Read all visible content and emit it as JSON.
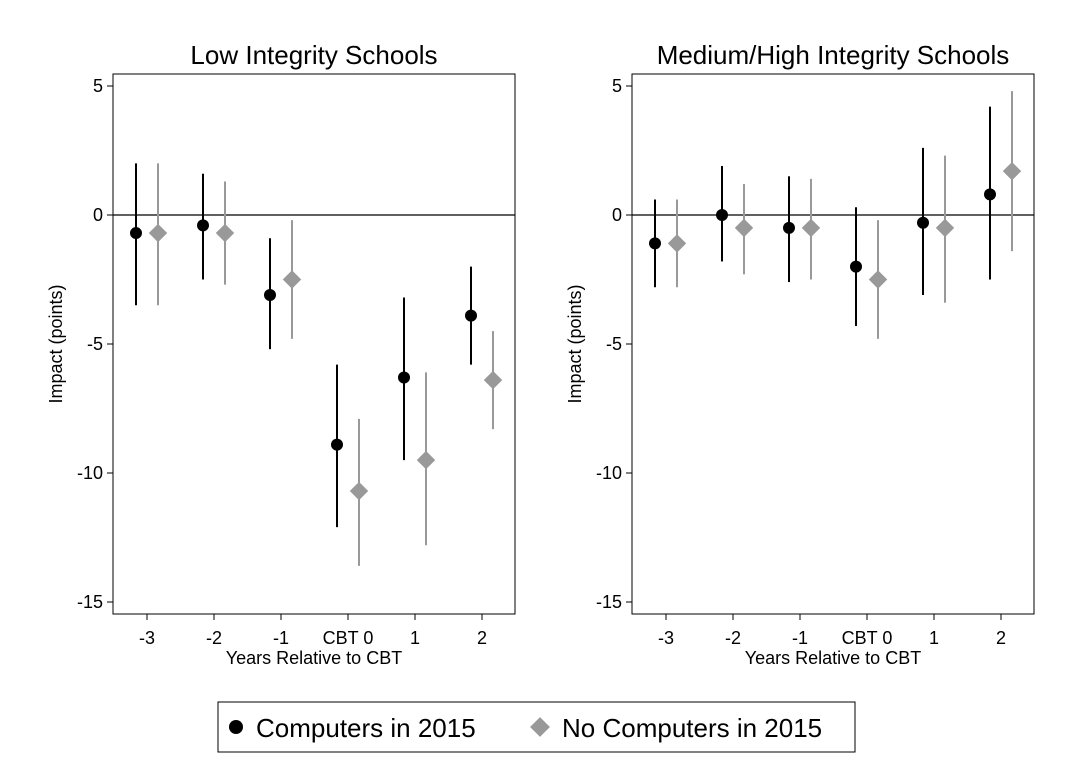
{
  "chart_data": [
    {
      "type": "scatter",
      "title": "Low Integrity Schools",
      "xlabel": "Years Relative to CBT",
      "ylabel": "Impact (points)",
      "categories": [
        "-3",
        "-2",
        "-1",
        "CBT 0",
        "1",
        "2"
      ],
      "yticks": [
        5,
        0,
        -5,
        -10,
        -15
      ],
      "ylim": [
        -15.5,
        5.5
      ],
      "zero_line": true,
      "series": [
        {
          "name": "Computers in 2015",
          "color": "#000000",
          "marker": "circle",
          "values": [
            -0.7,
            -0.4,
            -3.1,
            -8.9,
            -6.3,
            -3.9
          ],
          "ci_low": [
            -3.5,
            -2.5,
            -5.2,
            -12.1,
            -9.5,
            -5.8
          ],
          "ci_high": [
            2.0,
            1.6,
            -0.9,
            -5.8,
            -3.2,
            -2.0
          ]
        },
        {
          "name": "No Computers in 2015",
          "color": "#999999",
          "marker": "diamond",
          "values": [
            -0.7,
            -0.7,
            -2.5,
            -10.7,
            -9.5,
            -6.4
          ],
          "ci_low": [
            -3.5,
            -2.7,
            -4.8,
            -13.6,
            -12.8,
            -8.3
          ],
          "ci_high": [
            2.0,
            1.3,
            -0.2,
            -7.9,
            -6.1,
            -4.5
          ]
        }
      ]
    },
    {
      "type": "scatter",
      "title": "Medium/High Integrity Schools",
      "xlabel": "Years Relative to CBT",
      "ylabel": "Impact (points)",
      "categories": [
        "-3",
        "-2",
        "-1",
        "CBT 0",
        "1",
        "2"
      ],
      "yticks": [
        5,
        0,
        -5,
        -10,
        -15
      ],
      "ylim": [
        -15.5,
        5.5
      ],
      "zero_line": true,
      "series": [
        {
          "name": "Computers in 2015",
          "color": "#000000",
          "marker": "circle",
          "values": [
            -1.1,
            0.0,
            -0.5,
            -2.0,
            -0.3,
            0.8
          ],
          "ci_low": [
            -2.8,
            -1.8,
            -2.6,
            -4.3,
            -3.1,
            -2.5
          ],
          "ci_high": [
            0.6,
            1.9,
            1.5,
            0.3,
            2.6,
            4.2
          ]
        },
        {
          "name": "No Computers in 2015",
          "color": "#999999",
          "marker": "diamond",
          "values": [
            -1.1,
            -0.5,
            -0.5,
            -2.5,
            -0.5,
            1.7
          ],
          "ci_low": [
            -2.8,
            -2.3,
            -2.5,
            -4.8,
            -3.4,
            -1.4
          ],
          "ci_high": [
            0.6,
            1.2,
            1.4,
            -0.2,
            2.3,
            4.8
          ]
        }
      ]
    }
  ],
  "legend": {
    "position": "bottom-center",
    "items": [
      {
        "label": "Computers in 2015",
        "color": "#000000",
        "marker": "circle"
      },
      {
        "label": "No Computers in 2015",
        "color": "#999999",
        "marker": "diamond"
      }
    ]
  }
}
